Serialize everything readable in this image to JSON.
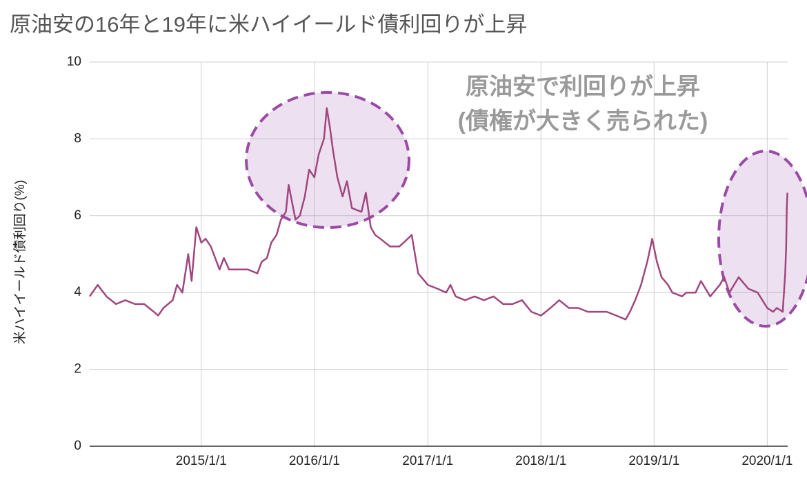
{
  "chart_data": {
    "type": "line",
    "title": "原油安の16年と19年に米ハイイールド債利回りが上昇",
    "y_label": "米ハイイールド債利回り(%)",
    "annotations": [
      "原油安で利回りが上昇",
      "(債権が大きく売られた)"
    ],
    "color": "#a0467e",
    "x": [
      "2014/1/6",
      "2014/2/1",
      "2014/3/1",
      "2014/4/1",
      "2014/5/1",
      "2014/6/1",
      "2014/7/1",
      "2014/8/1",
      "2014/8/15",
      "2014/9/1",
      "2014/10/1",
      "2014/10/15",
      "2014/11/1",
      "2014/11/20",
      "2014/12/1",
      "2014/12/16",
      "2015/1/1",
      "2015/1/15",
      "2015/2/1",
      "2015/3/1",
      "2015/3/15",
      "2015/4/1",
      "2015/5/1",
      "2015/6/1",
      "2015/7/1",
      "2015/7/15",
      "2015/8/1",
      "2015/8/15",
      "2015/9/1",
      "2015/9/15",
      "2015/10/1",
      "2015/10/10",
      "2015/11/1",
      "2015/11/15",
      "2015/12/1",
      "2015/12/15",
      "2016/1/1",
      "2016/1/15",
      "2016/2/1",
      "2016/2/10",
      "2016/2/20",
      "2016/3/1",
      "2016/3/15",
      "2016/4/1",
      "2016/4/15",
      "2016/5/1",
      "2016/6/1",
      "2016/6/15",
      "2016/7/1",
      "2016/7/15",
      "2016/8/1",
      "2016/9/1",
      "2016/10/1",
      "2016/10/15",
      "2016/11/10",
      "2016/12/1",
      "2017/1/1",
      "2017/2/1",
      "2017/3/1",
      "2017/3/15",
      "2017/4/1",
      "2017/5/1",
      "2017/6/1",
      "2017/7/1",
      "2017/8/1",
      "2017/9/1",
      "2017/10/1",
      "2017/11/1",
      "2017/12/1",
      "2018/1/1",
      "2018/2/1",
      "2018/3/1",
      "2018/4/1",
      "2018/5/1",
      "2018/6/1",
      "2018/7/1",
      "2018/8/1",
      "2018/9/1",
      "2018/10/1",
      "2018/10/15",
      "2018/11/1",
      "2018/11/20",
      "2018/12/10",
      "2018/12/26",
      "2019/1/10",
      "2019/1/25",
      "2019/2/15",
      "2019/3/1",
      "2019/4/1",
      "2019/4/15",
      "2019/5/15",
      "2019/6/1",
      "2019/7/1",
      "2019/8/1",
      "2019/8/15",
      "2019/9/1",
      "2019/10/1",
      "2019/11/1",
      "2019/12/1",
      "2020/1/1",
      "2020/1/20",
      "2020/2/1",
      "2020/2/20",
      "2020/2/28",
      "2020/3/2",
      "2020/3/4",
      "2020/3/6"
    ],
    "values": [
      3.9,
      4.2,
      3.9,
      3.7,
      3.8,
      3.7,
      3.7,
      3.5,
      3.4,
      3.6,
      3.8,
      4.2,
      4.0,
      5.0,
      4.3,
      5.7,
      5.3,
      5.4,
      5.2,
      4.6,
      4.9,
      4.6,
      4.6,
      4.6,
      4.5,
      4.8,
      4.9,
      5.3,
      5.5,
      5.9,
      6.1,
      6.8,
      5.9,
      6.0,
      6.5,
      7.2,
      7.0,
      7.6,
      8.0,
      8.8,
      8.3,
      7.7,
      7.0,
      6.5,
      6.9,
      6.2,
      6.1,
      6.6,
      5.7,
      5.5,
      5.4,
      5.2,
      5.2,
      5.3,
      5.5,
      4.5,
      4.2,
      4.1,
      4.0,
      4.2,
      3.9,
      3.8,
      3.9,
      3.8,
      3.9,
      3.7,
      3.7,
      3.8,
      3.5,
      3.4,
      3.6,
      3.8,
      3.6,
      3.6,
      3.5,
      3.5,
      3.5,
      3.4,
      3.3,
      3.5,
      3.8,
      4.2,
      4.8,
      5.4,
      4.8,
      4.4,
      4.2,
      4.0,
      3.9,
      4.0,
      4.0,
      4.3,
      3.9,
      4.2,
      4.4,
      4.0,
      4.4,
      4.1,
      4.0,
      3.6,
      3.5,
      3.6,
      3.5,
      4.5,
      5.2,
      6.2,
      6.6
    ],
    "xlim": [
      "2014/1/6",
      "2020/3/7"
    ],
    "xticks": [
      "2015/1/1",
      "2016/1/1",
      "2017/1/1",
      "2018/1/1",
      "2019/1/1",
      "2020/1/1"
    ],
    "ylim": [
      0,
      10
    ],
    "yticks": [
      0,
      2,
      4,
      6,
      8,
      10
    ],
    "grid": true
  }
}
